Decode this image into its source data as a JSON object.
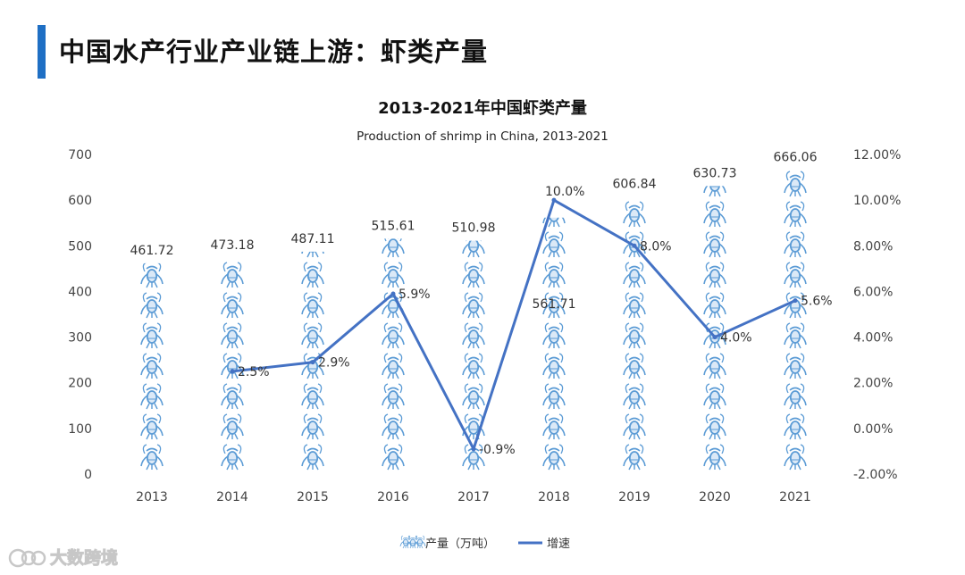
{
  "page_title": "中国水产行业产业链上游：虾类产量",
  "watermark": "大数跨境",
  "colors": {
    "accent_bar": "#1f6fc4",
    "bar_icon": "#5b9bd5",
    "line": "#4472c4"
  },
  "chart_data": {
    "type": "bar",
    "title": "2013-2021年中国虾类产量",
    "subtitle": "Production of shrimp in China, 2013-2021",
    "categories": [
      "2013",
      "2014",
      "2015",
      "2016",
      "2017",
      "2018",
      "2019",
      "2020",
      "2021"
    ],
    "series": [
      {
        "name": "产量（万吨）",
        "type": "bar",
        "axis": "left",
        "values": [
          461.72,
          473.18,
          487.11,
          515.61,
          510.98,
          561.71,
          606.84,
          630.73,
          666.06
        ],
        "labels": [
          "461.72",
          "473.18",
          "487.11",
          "515.61",
          "510.98",
          "561.71",
          "606.84",
          "630.73",
          "666.06"
        ]
      },
      {
        "name": "增速",
        "type": "line",
        "axis": "right",
        "values": [
          null,
          2.5,
          2.9,
          5.9,
          -0.9,
          10.0,
          8.0,
          4.0,
          5.6
        ],
        "labels": [
          "",
          "2.5%",
          "2.9%",
          "5.9%",
          "-0.9%",
          "10.0%",
          "8.0%",
          "4.0%",
          "5.6%"
        ]
      }
    ],
    "y_left": {
      "min": 0,
      "max": 700,
      "ticks": [
        "0",
        "100",
        "200",
        "300",
        "400",
        "500",
        "600",
        "700"
      ]
    },
    "y_right": {
      "min": -2,
      "max": 12,
      "ticks": [
        "-2.00%",
        "0.00%",
        "2.00%",
        "4.00%",
        "6.00%",
        "8.00%",
        "10.00%",
        "12.00%"
      ]
    },
    "grid": false,
    "legend_position": "bottom"
  }
}
